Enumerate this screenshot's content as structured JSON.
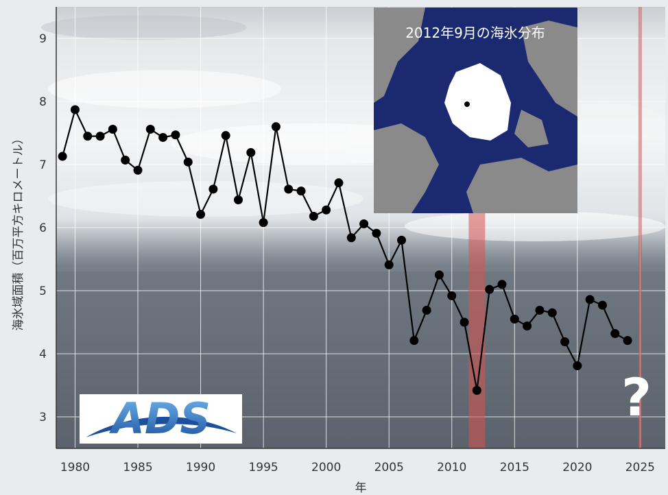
{
  "chart_data": {
    "type": "line",
    "title": "",
    "xlabel": "年",
    "ylabel": "海氷域面積（百万平方キロメートル）",
    "xlim": [
      1978.5,
      2027
    ],
    "ylim": [
      2.5,
      9.5
    ],
    "xticks": [
      1980,
      1985,
      1990,
      1995,
      2000,
      2005,
      2010,
      2015,
      2020,
      2025
    ],
    "yticks": [
      3,
      4,
      5,
      6,
      7,
      8,
      9
    ],
    "grid": true,
    "series": [
      {
        "x": [
          1979,
          1980,
          1981,
          1982,
          1983,
          1984,
          1985,
          1986,
          1987,
          1988,
          1989,
          1990,
          1991,
          1992,
          1993,
          1994,
          1995,
          1996,
          1997,
          1998,
          1999,
          2000,
          2001,
          2002,
          2003,
          2004,
          2005,
          2006,
          2007,
          2008,
          2009,
          2010,
          2011,
          2012,
          2013,
          2014,
          2015,
          2016,
          2017,
          2018,
          2019,
          2020,
          2021,
          2022,
          2023,
          2024
        ],
        "values": [
          7.13,
          7.87,
          7.45,
          7.45,
          7.56,
          7.07,
          6.91,
          7.56,
          7.43,
          7.47,
          7.04,
          6.21,
          6.61,
          7.46,
          6.44,
          7.19,
          6.08,
          7.6,
          6.61,
          6.58,
          6.18,
          6.28,
          6.71,
          5.84,
          6.06,
          5.91,
          5.41,
          5.8,
          4.21,
          4.69,
          5.25,
          4.92,
          4.5,
          3.42,
          5.02,
          5.1,
          4.55,
          4.44,
          4.69,
          4.65,
          4.19,
          3.81,
          4.86,
          4.77,
          4.32,
          4.21
        ]
      }
    ],
    "highlights": [
      2012,
      2025
    ],
    "annotations": [
      "?"
    ],
    "inset": {
      "title": "2012年9月の海氷分布"
    },
    "logo": "ADS",
    "colors": {
      "line": "#000000",
      "highlight": "#d9534f",
      "grid": "#ffffff",
      "ocean": "#1b2a70",
      "land": "#8a8a8a",
      "ice": "#ffffff"
    }
  }
}
